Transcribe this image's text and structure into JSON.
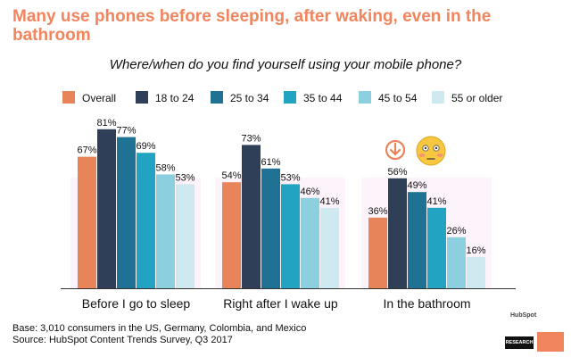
{
  "header": {
    "title": "Many use phones before sleeping, after waking, even in the bathroom",
    "subtitle": "Where/when do you find yourself using your mobile phone?"
  },
  "footer": {
    "base": "Base: 3,010 consumers in the US, Germany, Colombia, and Mexico",
    "source": "Source: HubSpot Content Trends Survey, Q3 2017"
  },
  "brand": {
    "hubspot": "HubSpot",
    "research": "RESEARCH"
  },
  "icons": [
    "down-arrow-circle-icon",
    "flushed-face-emoji-icon"
  ],
  "chart_data": {
    "type": "bar",
    "categories": [
      "Before I go to sleep",
      "Right after I wake up",
      "In the bathroom"
    ],
    "series": [
      {
        "name": "Overall",
        "values": [
          67,
          54,
          36
        ],
        "labels": [
          "67%",
          "54%",
          "36%"
        ],
        "color": "#e8845a"
      },
      {
        "name": "18 to 24",
        "values": [
          81,
          73,
          56
        ],
        "labels": [
          "81%",
          "73%",
          "56%"
        ],
        "color": "#2f3f57"
      },
      {
        "name": "25 to 34",
        "values": [
          77,
          61,
          49
        ],
        "labels": [
          "77%",
          "61%",
          "49%"
        ],
        "color": "#1f7293"
      },
      {
        "name": "35 to 44",
        "values": [
          69,
          53,
          41
        ],
        "labels": [
          "69%",
          "53%",
          "41%"
        ],
        "color": "#22a3c2"
      },
      {
        "name": "45 to 54",
        "values": [
          58,
          46,
          26
        ],
        "labels": [
          "58%",
          "46%",
          "26%"
        ],
        "color": "#8cd0df"
      },
      {
        "name": "55 or older",
        "values": [
          53,
          41,
          16
        ],
        "labels": [
          "53%",
          "41%",
          "16%"
        ],
        "color": "#cfe9f1"
      }
    ],
    "ylim": [
      0,
      100
    ],
    "legend_position": "top",
    "grid": false
  }
}
